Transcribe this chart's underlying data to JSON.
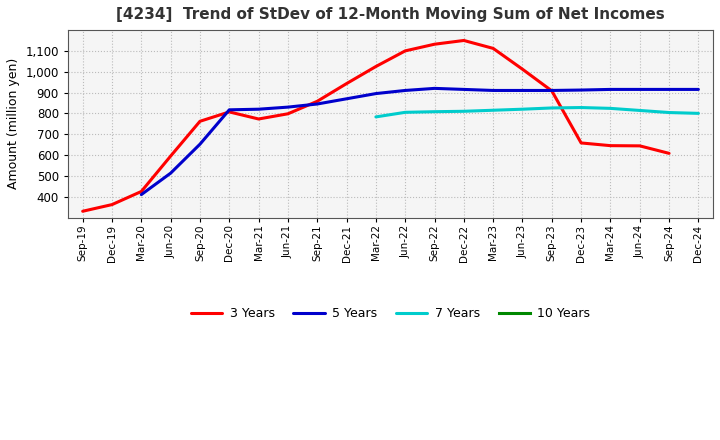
{
  "title": "[4234]  Trend of StDev of 12-Month Moving Sum of Net Incomes",
  "ylabel": "Amount (million yen)",
  "x_labels": [
    "Sep-19",
    "Dec-19",
    "Mar-20",
    "Jun-20",
    "Sep-20",
    "Dec-20",
    "Mar-21",
    "Jun-21",
    "Sep-21",
    "Dec-21",
    "Mar-22",
    "Jun-22",
    "Sep-22",
    "Dec-22",
    "Mar-23",
    "Jun-23",
    "Sep-23",
    "Dec-23",
    "Mar-24",
    "Jun-24",
    "Sep-24",
    "Dec-24"
  ],
  "series": {
    "3 Years": {
      "color": "#ff0000",
      "data": [
        330,
        362,
        425,
        595,
        762,
        807,
        773,
        798,
        858,
        943,
        1025,
        1100,
        1132,
        1150,
        1112,
        1012,
        908,
        658,
        645,
        644,
        608,
        null
      ]
    },
    "5 Years": {
      "color": "#0000cc",
      "data": [
        null,
        null,
        410,
        513,
        652,
        817,
        820,
        830,
        845,
        870,
        895,
        910,
        920,
        915,
        910,
        910,
        910,
        912,
        915,
        915,
        915,
        915
      ]
    },
    "7 Years": {
      "color": "#00cccc",
      "data": [
        null,
        null,
        null,
        null,
        null,
        null,
        null,
        null,
        null,
        null,
        783,
        805,
        808,
        810,
        815,
        820,
        826,
        828,
        824,
        814,
        804,
        800
      ]
    },
    "10 Years": {
      "color": "#008800",
      "data": [
        null,
        null,
        null,
        null,
        null,
        null,
        null,
        null,
        null,
        null,
        null,
        null,
        null,
        null,
        null,
        null,
        null,
        null,
        null,
        null,
        null,
        null
      ]
    }
  },
  "ylim": [
    300,
    1200
  ],
  "yticks": [
    400,
    500,
    600,
    700,
    800,
    900,
    1000,
    1100
  ],
  "background_color": "#ffffff",
  "plot_bg_color": "#f5f5f5",
  "grid_color": "#aaaaaa",
  "title_fontsize": 11,
  "title_color": "#333333"
}
